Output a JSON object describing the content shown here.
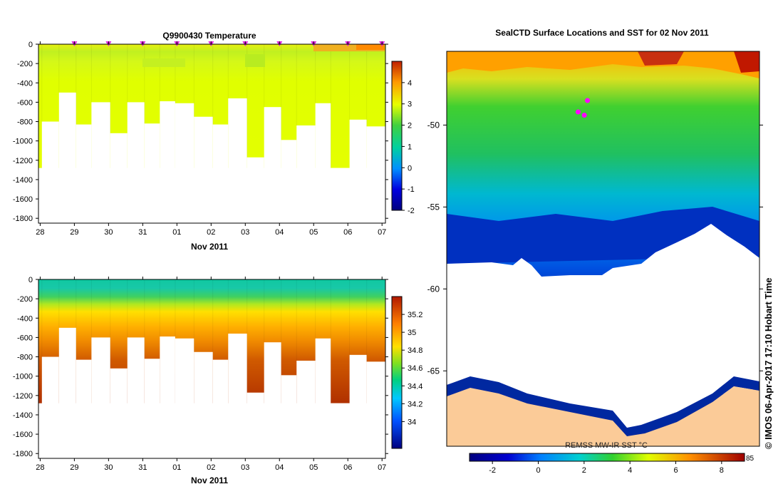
{
  "chart_data": [
    {
      "type": "heatmap",
      "title": "Q9900430  Temperature",
      "xlabel": "Nov 2011",
      "ylabel": "",
      "x_tick_labels": [
        "28",
        "29",
        "30",
        "31",
        "01",
        "02",
        "03",
        "04",
        "05",
        "06",
        "07"
      ],
      "x_tick_values": [
        0,
        1,
        2,
        3,
        4,
        5,
        6,
        7,
        8,
        9,
        10
      ],
      "y_tick_values": [
        0,
        -200,
        -400,
        -600,
        -800,
        -1000,
        -1200,
        -1400,
        -1600,
        -1800
      ],
      "ylim": [
        -1850,
        0
      ],
      "xlim": [
        -0.05,
        10.1
      ],
      "profile_markers": [
        1,
        2,
        3,
        4,
        5,
        6,
        7,
        8,
        9,
        10
      ],
      "cast_days": [
        0.05,
        0.55,
        1.05,
        1.5,
        2.05,
        2.55,
        3.05,
        3.5,
        3.95,
        4.5,
        5.05,
        5.5,
        6.05,
        6.55,
        7.05,
        7.5,
        8.05,
        8.5,
        9.05,
        9.55
      ],
      "cast_depths": [
        -800,
        -500,
        -830,
        -600,
        -920,
        -600,
        -820,
        -590,
        -610,
        -750,
        -830,
        -560,
        -1170,
        -650,
        -990,
        -840,
        -610,
        -1280,
        -780,
        -850
      ],
      "colorbar": {
        "min": -2,
        "max": 5,
        "ticks": [
          4,
          3,
          2,
          1,
          0,
          -1,
          -2
        ],
        "tick_labels": [
          "4",
          "3",
          "2",
          "1",
          "0",
          "-1",
          "-2"
        ]
      }
    },
    {
      "type": "heatmap",
      "title": "",
      "xlabel": "Nov 2011",
      "ylabel": "",
      "x_tick_labels": [
        "28",
        "29",
        "30",
        "31",
        "01",
        "02",
        "03",
        "04",
        "05",
        "06",
        "07"
      ],
      "x_tick_values": [
        0,
        1,
        2,
        3,
        4,
        5,
        6,
        7,
        8,
        9,
        10
      ],
      "y_tick_values": [
        0,
        -200,
        -400,
        -600,
        -800,
        -1000,
        -1200,
        -1400,
        -1600,
        -1800
      ],
      "ylim": [
        -1850,
        0
      ],
      "xlim": [
        -0.05,
        10.1
      ],
      "cast_days": [
        0.05,
        0.55,
        1.05,
        1.5,
        2.05,
        2.55,
        3.05,
        3.5,
        3.95,
        4.5,
        5.05,
        5.5,
        6.05,
        6.55,
        7.05,
        7.5,
        8.05,
        8.5,
        9.05,
        9.55
      ],
      "cast_depths": [
        -800,
        -500,
        -830,
        -600,
        -920,
        -600,
        -820,
        -590,
        -610,
        -750,
        -830,
        -560,
        -1170,
        -650,
        -990,
        -840,
        -610,
        -1280,
        -780,
        -850
      ],
      "colorbar": {
        "min": 33.7,
        "max": 35.4,
        "ticks": [
          35.2,
          35,
          34.8,
          34.6,
          34.4,
          34.2,
          34
        ],
        "tick_labels": [
          "35.2",
          "35",
          "34.8",
          "34.6",
          "34.4",
          "34.2",
          "34"
        ]
      }
    },
    {
      "type": "map",
      "title": "SealCTD Surface Locations and SST for 02 Nov 2011",
      "y_tick_labels": [
        "-50",
        "-55",
        "-60",
        "-65"
      ],
      "y_tick_values": [
        -50,
        -55,
        -60,
        -65
      ],
      "ylim": [
        -69.6,
        -45.5
      ],
      "colorbar_label": "REMSS MW-IR SST °C",
      "colorbar": {
        "min": -3,
        "max": 9,
        "ticks": [
          -2,
          0,
          2,
          4,
          6,
          8
        ],
        "tick_labels": [
          "-2",
          "0",
          "2",
          "4",
          "6",
          "8"
        ],
        "top_label_right": "85"
      },
      "credit": "© IMOS 06-Apr-2017 17:10 Hobart Time",
      "seal_positions": [
        {
          "lat": -48.5,
          "lon_frac": 0.45
        },
        {
          "lat": -49.2,
          "lon_frac": 0.42
        },
        {
          "lat": -49.4,
          "lon_frac": 0.44
        }
      ]
    }
  ],
  "colors": {
    "land": "#fbcb98",
    "ice": "#ffffff",
    "seal_marker": "#ff00ff",
    "axis": "#000000"
  }
}
